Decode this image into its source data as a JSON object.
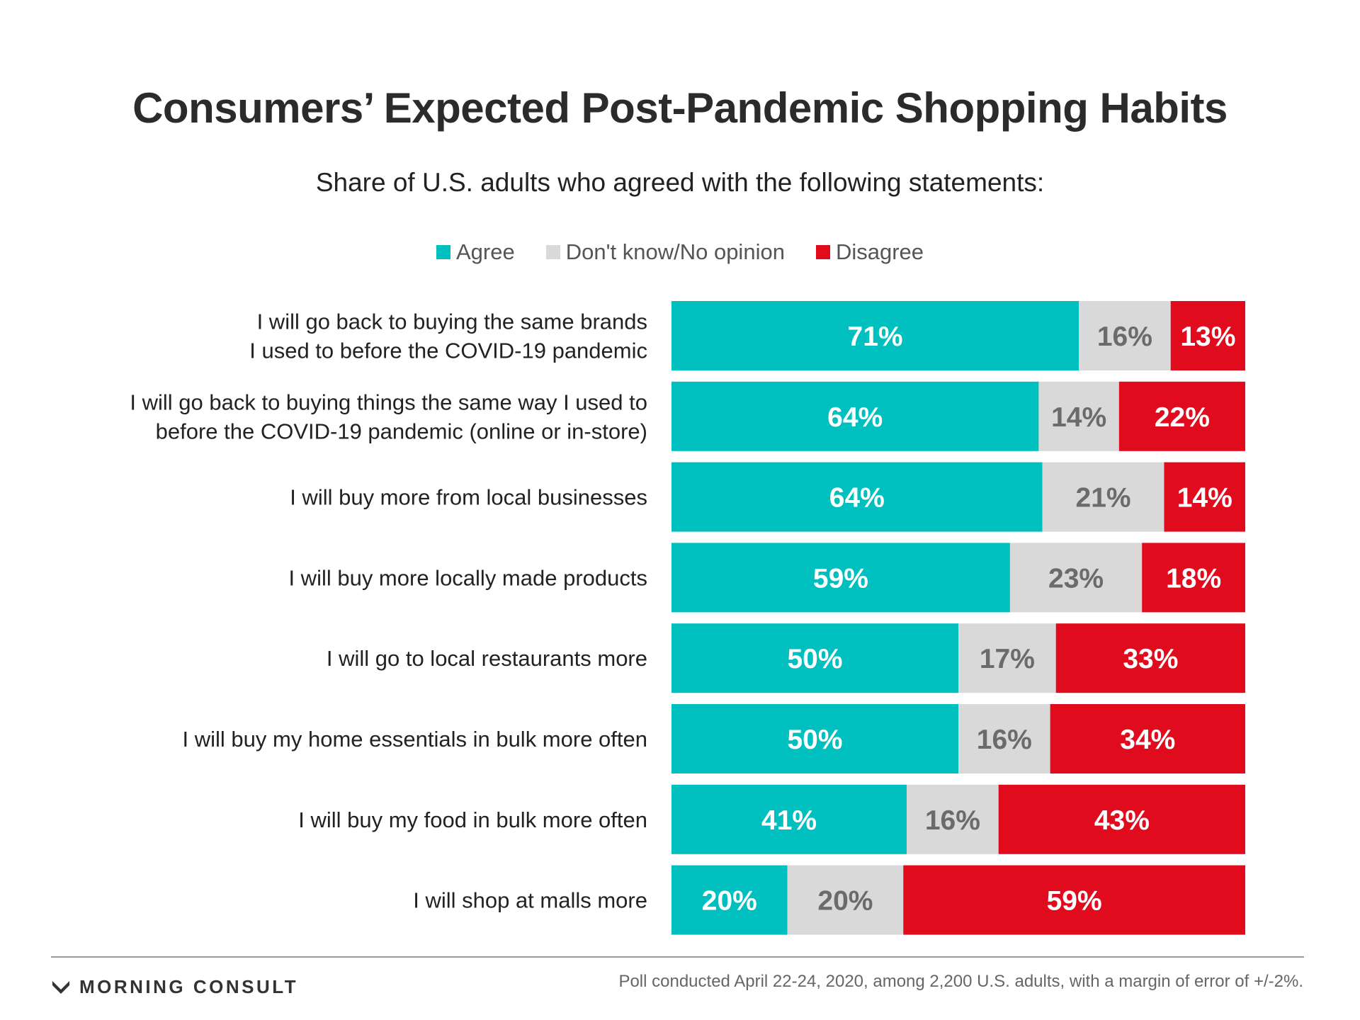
{
  "chart_data": {
    "type": "bar",
    "stacked": true,
    "orientation": "horizontal",
    "title": "Consumers’ Expected Post-Pandemic Shopping Habits",
    "subtitle": "Share of U.S. adults who agreed with the following statements:",
    "legend_position": "top-center",
    "categories": [
      [
        "I will go back to buying the same brands",
        "I used to before the COVID-19 pandemic"
      ],
      [
        "I will go back to buying things the same way I used to",
        "before the COVID-19 pandemic (online or in-store)"
      ],
      [
        "I will buy more from local businesses"
      ],
      [
        "I will buy more locally made products"
      ],
      [
        "I will go to local restaurants more"
      ],
      [
        "I will buy my home essentials in bulk more often"
      ],
      [
        "I will buy my food in bulk more often"
      ],
      [
        "I will shop at malls more"
      ]
    ],
    "series": [
      {
        "name": "Agree",
        "color": "#00bfbf",
        "label_color": "#ffffff",
        "values": [
          71,
          64,
          64,
          59,
          50,
          50,
          41,
          20
        ]
      },
      {
        "name": "Don't know/No opinion",
        "color": "#d9d9d9",
        "label_color": "#6b6b6b",
        "values": [
          16,
          14,
          21,
          23,
          17,
          16,
          16,
          20
        ]
      },
      {
        "name": "Disagree",
        "color": "#e00b1c",
        "label_color": "#ffffff",
        "values": [
          13,
          22,
          14,
          18,
          33,
          34,
          43,
          59
        ]
      }
    ],
    "value_suffix": "%",
    "grid": false
  },
  "footer": {
    "brand": "MORNING CONSULT",
    "logo_icon": "morning-consult-logo-icon",
    "note": "Poll conducted April 22-24, 2020, among 2,200 U.S. adults, with a margin of error of +/-2%."
  }
}
